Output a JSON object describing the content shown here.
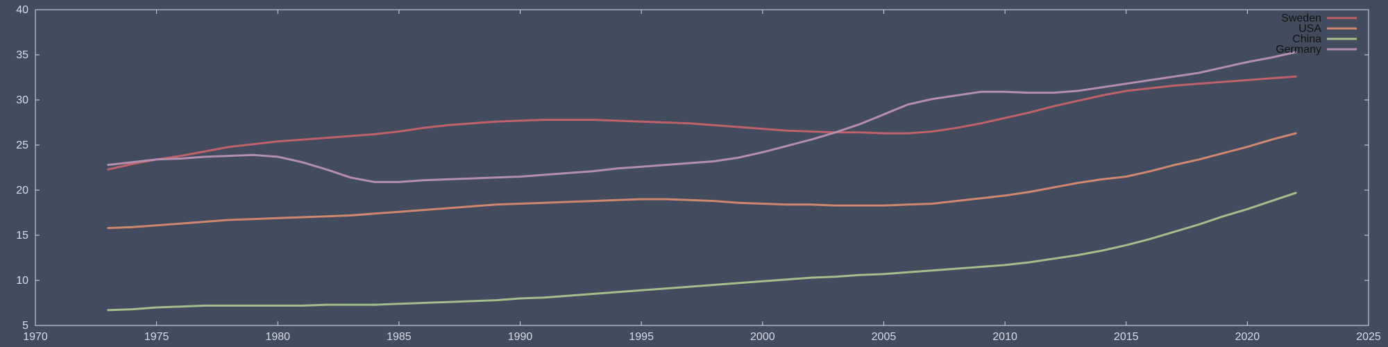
{
  "chart_data": {
    "type": "line",
    "title": "",
    "xlabel": "",
    "ylabel": "",
    "xlim": [
      1970,
      2025
    ],
    "ylim": [
      5,
      40
    ],
    "x_ticks": [
      1970,
      1975,
      1980,
      1985,
      1990,
      1995,
      2000,
      2005,
      2010,
      2015,
      2020,
      2025
    ],
    "y_ticks": [
      5,
      10,
      15,
      20,
      25,
      30,
      35,
      40
    ],
    "grid": false,
    "legend_position": "top-right",
    "background_color": "#434c5e",
    "axis_color": "#d8dee9",
    "x": [
      1973,
      1974,
      1975,
      1976,
      1977,
      1978,
      1979,
      1980,
      1981,
      1982,
      1983,
      1984,
      1985,
      1986,
      1987,
      1988,
      1989,
      1990,
      1991,
      1992,
      1993,
      1994,
      1995,
      1996,
      1997,
      1998,
      1999,
      2000,
      2001,
      2002,
      2003,
      2004,
      2005,
      2006,
      2007,
      2008,
      2009,
      2010,
      2011,
      2012,
      2013,
      2014,
      2015,
      2016,
      2017,
      2018,
      2019,
      2020,
      2021,
      2022
    ],
    "series": [
      {
        "name": "Sweden",
        "color": "#bf616a",
        "values": [
          22.3,
          22.9,
          23.4,
          23.8,
          24.3,
          24.8,
          25.1,
          25.4,
          25.6,
          25.8,
          26.0,
          26.2,
          26.5,
          26.9,
          27.2,
          27.4,
          27.6,
          27.7,
          27.8,
          27.8,
          27.8,
          27.7,
          27.6,
          27.5,
          27.4,
          27.2,
          27.0,
          26.8,
          26.6,
          26.5,
          26.4,
          26.4,
          26.3,
          26.3,
          26.5,
          26.9,
          27.4,
          28.0,
          28.6,
          29.3,
          29.9,
          30.5,
          31.0,
          31.3,
          31.6,
          31.8,
          32.0,
          32.2,
          32.4,
          32.6
        ]
      },
      {
        "name": "USA",
        "color": "#d08770",
        "values": [
          15.8,
          15.9,
          16.1,
          16.3,
          16.5,
          16.7,
          16.8,
          16.9,
          17.0,
          17.1,
          17.2,
          17.4,
          17.6,
          17.8,
          18.0,
          18.2,
          18.4,
          18.5,
          18.6,
          18.7,
          18.8,
          18.9,
          19.0,
          19.0,
          18.9,
          18.8,
          18.6,
          18.5,
          18.4,
          18.4,
          18.3,
          18.3,
          18.3,
          18.4,
          18.5,
          18.8,
          19.1,
          19.4,
          19.8,
          20.3,
          20.8,
          21.2,
          21.5,
          22.1,
          22.8,
          23.4,
          24.1,
          24.8,
          25.6,
          26.3
        ]
      },
      {
        "name": "China",
        "color": "#a3be8c",
        "values": [
          6.7,
          6.8,
          7.0,
          7.1,
          7.2,
          7.2,
          7.2,
          7.2,
          7.2,
          7.3,
          7.3,
          7.3,
          7.4,
          7.5,
          7.6,
          7.7,
          7.8,
          8.0,
          8.1,
          8.3,
          8.5,
          8.7,
          8.9,
          9.1,
          9.3,
          9.5,
          9.7,
          9.9,
          10.1,
          10.3,
          10.4,
          10.6,
          10.7,
          10.9,
          11.1,
          11.3,
          11.5,
          11.7,
          12.0,
          12.4,
          12.8,
          13.3,
          13.9,
          14.6,
          15.4,
          16.2,
          17.1,
          17.9,
          18.8,
          19.7
        ]
      },
      {
        "name": "Germany",
        "color": "#b48ead",
        "values": [
          22.8,
          23.1,
          23.4,
          23.5,
          23.7,
          23.8,
          23.9,
          23.7,
          23.1,
          22.3,
          21.4,
          20.9,
          20.9,
          21.1,
          21.2,
          21.3,
          21.4,
          21.5,
          21.7,
          21.9,
          22.1,
          22.4,
          22.6,
          22.8,
          23.0,
          23.2,
          23.6,
          24.2,
          24.9,
          25.6,
          26.4,
          27.3,
          28.4,
          29.5,
          30.1,
          30.5,
          30.9,
          30.9,
          30.8,
          30.8,
          31.0,
          31.4,
          31.8,
          32.2,
          32.6,
          33.0,
          33.6,
          34.2,
          34.7,
          35.3
        ]
      }
    ]
  }
}
